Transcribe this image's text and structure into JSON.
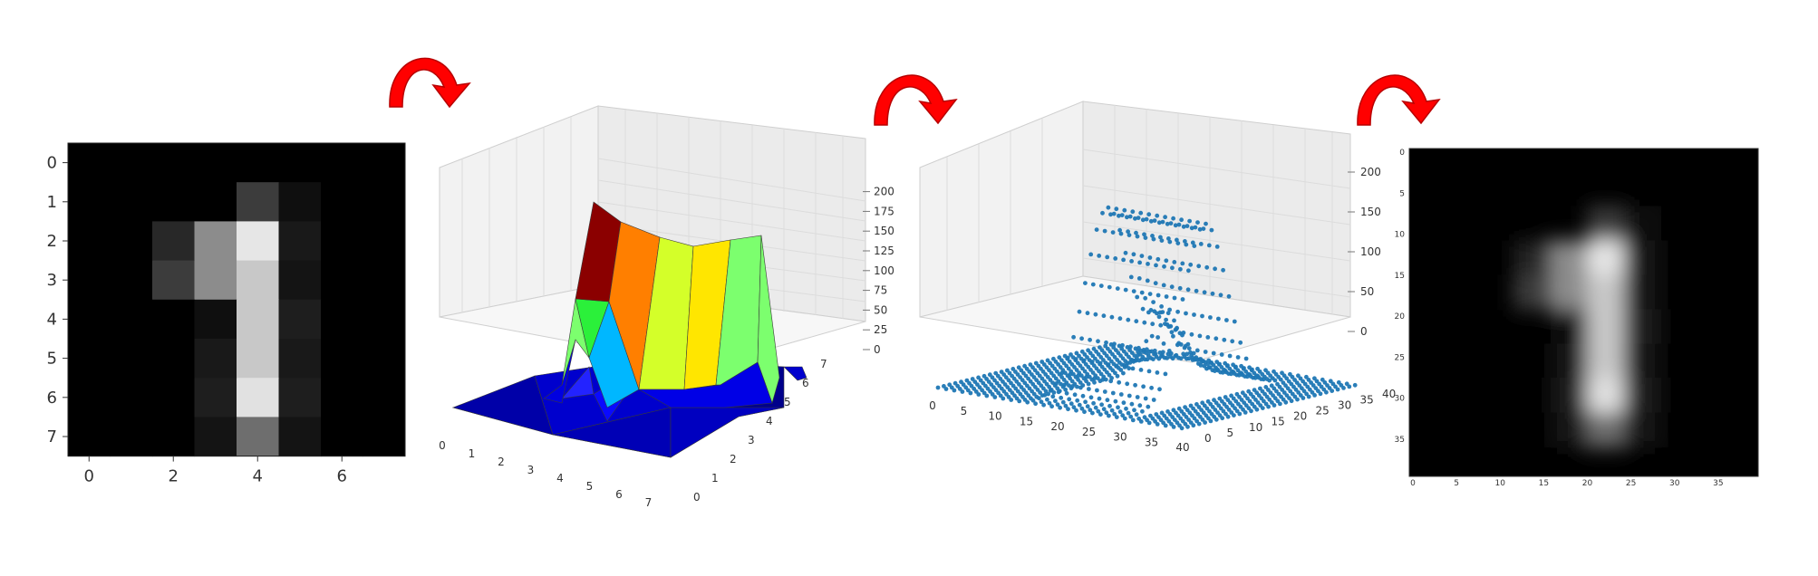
{
  "figure": {
    "colors": {
      "arrow": "#ff0000",
      "arrow_dark": "#b80000",
      "scatter": "#1f77b4",
      "axis_text": "#333333"
    }
  },
  "pixel_image": {
    "x_ticks": [
      "0",
      "2",
      "4",
      "6"
    ],
    "y_ticks": [
      "0",
      "1",
      "2",
      "3",
      "4",
      "5",
      "6",
      "7"
    ],
    "values": [
      [
        0,
        0,
        0,
        0,
        0,
        0,
        0,
        0
      ],
      [
        0,
        0,
        0,
        0,
        60,
        15,
        0,
        0
      ],
      [
        0,
        0,
        40,
        140,
        230,
        25,
        0,
        0
      ],
      [
        0,
        0,
        60,
        140,
        200,
        20,
        0,
        0
      ],
      [
        0,
        0,
        0,
        15,
        200,
        30,
        0,
        0
      ],
      [
        0,
        0,
        0,
        25,
        200,
        25,
        0,
        0
      ],
      [
        0,
        0,
        0,
        30,
        225,
        30,
        0,
        0
      ],
      [
        0,
        0,
        0,
        20,
        110,
        20,
        0,
        0
      ]
    ]
  },
  "surface_plot": {
    "x_ticks": [
      "0",
      "1",
      "2",
      "3",
      "4",
      "5",
      "6",
      "7"
    ],
    "y_ticks": [
      "0",
      "1",
      "2",
      "3",
      "4",
      "5",
      "6",
      "7"
    ],
    "z_ticks": [
      "0",
      "25",
      "50",
      "75",
      "100",
      "125",
      "150",
      "175",
      "200"
    ]
  },
  "scatter_plot": {
    "x_ticks": [
      "0",
      "5",
      "10",
      "15",
      "20",
      "25",
      "30",
      "35",
      "40"
    ],
    "y_ticks": [
      "0",
      "5",
      "10",
      "15",
      "20",
      "25",
      "30",
      "35",
      "40"
    ],
    "z_ticks": [
      "0",
      "50",
      "100",
      "150",
      "200"
    ]
  },
  "upsampled_image": {
    "x_ticks": [
      "0",
      "5",
      "10",
      "15",
      "20",
      "25",
      "30",
      "35"
    ],
    "y_ticks": [
      "0",
      "5",
      "10",
      "15",
      "20",
      "25",
      "30",
      "35"
    ]
  }
}
